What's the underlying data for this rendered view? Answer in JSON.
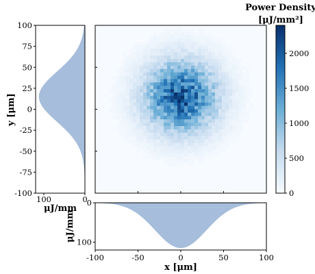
{
  "chart_data": [
    {
      "id": "heatmap",
      "type": "heatmap",
      "title": "",
      "xlim": [
        -100,
        100
      ],
      "ylim": [
        -100,
        100
      ],
      "peak_center": {
        "x": 0,
        "y": 15
      },
      "sigma_um": 30,
      "colorbar": {
        "title_line1": "Power Density",
        "title_line2": "[μJ/mm²]",
        "min": 0,
        "max": 2400,
        "ticks": [
          0,
          500,
          1000,
          1500,
          2000
        ],
        "colors": [
          "#f7fbff",
          "#c6dbef",
          "#6baed6",
          "#2171b5",
          "#08306b"
        ]
      }
    },
    {
      "id": "y-profile",
      "type": "area",
      "orientation": "horizontal-reversed",
      "ylabel": "y [μm]",
      "xlabel": "μJ/mm",
      "y_ticks": [
        100,
        75,
        50,
        25,
        0,
        -25,
        -50,
        -75,
        -100
      ],
      "x_ticks": [
        100,
        0
      ],
      "xlim": [
        120,
        0
      ],
      "ylim": [
        -100,
        100
      ],
      "peak_y": 15,
      "peak_value": 112,
      "sigma": 30,
      "color": "#a6bddb"
    },
    {
      "id": "x-profile",
      "type": "area",
      "orientation": "inverted",
      "xlabel": "x [μm]",
      "ylabel": "μJ/mm",
      "x_ticks": [
        -100,
        -50,
        0,
        50,
        100
      ],
      "y_ticks": [
        0,
        100
      ],
      "xlim": [
        -100,
        100
      ],
      "ylim": [
        0,
        120
      ],
      "peak_x": 0,
      "peak_value": 115,
      "sigma": 30,
      "color": "#a6bddb"
    }
  ]
}
